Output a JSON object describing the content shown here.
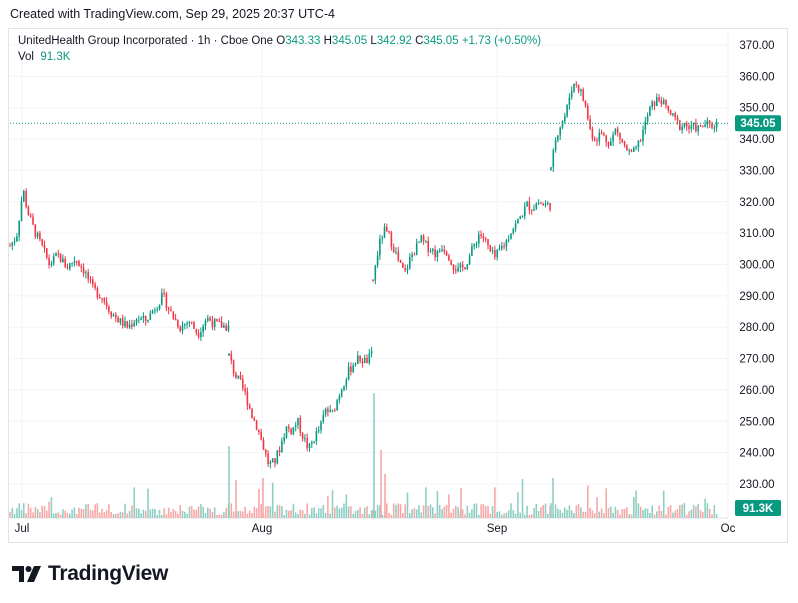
{
  "header": {
    "text": "Created with TradingView.com, Sep 29, 2025 20:37 UTC-4"
  },
  "legend": {
    "symbol": "UnitedHealth Group Incorporated · 1h · Cboe One",
    "open_label": "O",
    "open": "343.33",
    "high_label": "H",
    "high": "345.05",
    "low_label": "L",
    "low": "342.92",
    "close_label": "C",
    "close": "345.05",
    "change": "+1.73 (+0.50%)",
    "vol_label": "Vol",
    "vol": "91.3K"
  },
  "footer": {
    "brand": "TradingView"
  },
  "colors": {
    "up": "#089981",
    "down": "#f23645",
    "vol_up": "#8fcfc3",
    "vol_down": "#f7a9a7"
  },
  "chart_data": {
    "type": "candlestick",
    "interval": "1h",
    "y_ticks": [
      "370.00",
      "360.00",
      "350.00",
      "340.00",
      "330.00",
      "320.00",
      "310.00",
      "300.00",
      "290.00",
      "280.00",
      "270.00",
      "260.00",
      "250.00",
      "240.00",
      "230.00"
    ],
    "ylim": [
      227,
      373
    ],
    "x_ticks": [
      "Jul",
      "Aug",
      "Sep",
      "Oc"
    ],
    "last_price": "345.05",
    "last_volume": "91.3K",
    "series": [
      {
        "name": "price",
        "segments": [
          {
            "from": "Jul 1",
            "to": "Jul 28",
            "path": [
              [
                0,
                306
              ],
              [
                0.03,
                309
              ],
              [
                0.06,
                324
              ],
              [
                0.08,
                317
              ],
              [
                0.11,
                311
              ],
              [
                0.15,
                305
              ],
              [
                0.18,
                300
              ],
              [
                0.22,
                303
              ],
              [
                0.26,
                299
              ],
              [
                0.3,
                302
              ],
              [
                0.34,
                298
              ],
              [
                0.38,
                292
              ],
              [
                0.42,
                290
              ],
              [
                0.46,
                285
              ],
              [
                0.5,
                282
              ],
              [
                0.54,
                280
              ],
              [
                0.58,
                283
              ],
              [
                0.62,
                282
              ],
              [
                0.66,
                286
              ],
              [
                0.7,
                290
              ],
              [
                0.74,
                284
              ],
              [
                0.78,
                280
              ],
              [
                0.82,
                282
              ],
              [
                0.86,
                278
              ],
              [
                0.9,
                283
              ],
              [
                0.94,
                281
              ],
              [
                1,
                280
              ]
            ]
          },
          {
            "from": "Jul 28",
            "to": "Aug 15",
            "path": [
              [
                0,
                271
              ],
              [
                0.04,
                265
              ],
              [
                0.08,
                262
              ],
              [
                0.12,
                258
              ],
              [
                0.16,
                252
              ],
              [
                0.2,
                248
              ],
              [
                0.24,
                242
              ],
              [
                0.28,
                236
              ],
              [
                0.32,
                237
              ],
              [
                0.36,
                242
              ],
              [
                0.4,
                248
              ],
              [
                0.44,
                247
              ],
              [
                0.48,
                250
              ],
              [
                0.52,
                245
              ],
              [
                0.56,
                241
              ],
              [
                0.6,
                245
              ],
              [
                0.64,
                248
              ],
              [
                0.68,
                254
              ],
              [
                0.72,
                252
              ],
              [
                0.76,
                257
              ],
              [
                0.8,
                262
              ],
              [
                0.84,
                266
              ],
              [
                0.88,
                269
              ],
              [
                0.92,
                270
              ],
              [
                0.96,
                269
              ],
              [
                1,
                271
              ]
            ]
          },
          {
            "from": "Aug 15",
            "to": "Sep 5",
            "path": [
              [
                0,
                295
              ],
              [
                0.03,
                305
              ],
              [
                0.06,
                311
              ],
              [
                0.09,
                309
              ],
              [
                0.12,
                305
              ],
              [
                0.15,
                300
              ],
              [
                0.18,
                297
              ],
              [
                0.21,
                302
              ],
              [
                0.24,
                305
              ],
              [
                0.27,
                308
              ],
              [
                0.3,
                306
              ],
              [
                0.33,
                305
              ],
              [
                0.36,
                303
              ],
              [
                0.39,
                306
              ],
              [
                0.42,
                304
              ],
              [
                0.45,
                300
              ],
              [
                0.48,
                298
              ],
              [
                0.51,
                299
              ],
              [
                0.54,
                302
              ],
              [
                0.57,
                306
              ],
              [
                0.6,
                310
              ],
              [
                0.63,
                308
              ],
              [
                0.66,
                304
              ],
              [
                0.69,
                302
              ],
              [
                0.72,
                305
              ],
              [
                0.75,
                307
              ],
              [
                0.78,
                311
              ],
              [
                0.81,
                313
              ],
              [
                0.84,
                316
              ],
              [
                0.87,
                319
              ],
              [
                0.9,
                318
              ],
              [
                0.93,
                320
              ],
              [
                0.96,
                319
              ],
              [
                1,
                319
              ]
            ]
          },
          {
            "from": "Sep 5",
            "to": "Sep 29",
            "path": [
              [
                0,
                330
              ],
              [
                0.03,
                341
              ],
              [
                0.06,
                345
              ],
              [
                0.09,
                348
              ],
              [
                0.12,
                356
              ],
              [
                0.15,
                358
              ],
              [
                0.18,
                355
              ],
              [
                0.21,
                350
              ],
              [
                0.24,
                342
              ],
              [
                0.27,
                340
              ],
              [
                0.3,
                342
              ],
              [
                0.33,
                340
              ],
              [
                0.36,
                339
              ],
              [
                0.39,
                343
              ],
              [
                0.42,
                340
              ],
              [
                0.45,
                337
              ],
              [
                0.48,
                335
              ],
              [
                0.51,
                336
              ],
              [
                0.54,
                340
              ],
              [
                0.57,
                345
              ],
              [
                0.6,
                350
              ],
              [
                0.63,
                352
              ],
              [
                0.66,
                353
              ],
              [
                0.69,
                350
              ],
              [
                0.72,
                348
              ],
              [
                0.75,
                346
              ],
              [
                0.78,
                344
              ],
              [
                0.81,
                345
              ],
              [
                0.84,
                343
              ],
              [
                0.87,
                344
              ],
              [
                0.9,
                343
              ],
              [
                0.93,
                345
              ],
              [
                0.96,
                344
              ],
              [
                1,
                345
              ]
            ]
          }
        ]
      }
    ]
  }
}
